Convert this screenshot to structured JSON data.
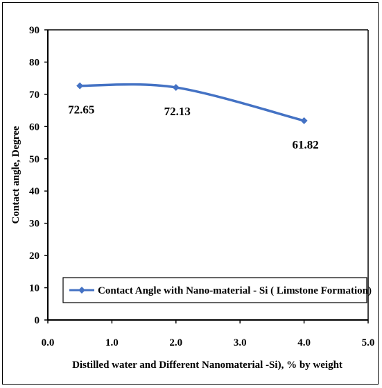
{
  "chart_data": {
    "type": "line",
    "title": "",
    "xlabel": "Distilled water and Different  Nanomaterial -Si), % by weight",
    "ylabel": "Contact  angle, Degree",
    "xlim": [
      0.0,
      5.0
    ],
    "ylim": [
      0,
      90
    ],
    "x_ticks": [
      "0.0",
      "1.0",
      "2.0",
      "3.0",
      "4.0",
      "5.0"
    ],
    "y_ticks": [
      "0",
      "10",
      "20",
      "30",
      "40",
      "50",
      "60",
      "70",
      "80",
      "90"
    ],
    "grid": false,
    "legend_position": "bottom",
    "series": [
      {
        "name": "Contact Angle with Nano-material - Si ( Limstone Formation)",
        "color": "#4472C4",
        "marker": "diamond",
        "smooth": true,
        "x": [
          0.5,
          2.0,
          4.0
        ],
        "y": [
          72.65,
          72.13,
          61.82
        ],
        "labels": [
          "72.65",
          "72.13",
          "61.82"
        ]
      }
    ]
  }
}
